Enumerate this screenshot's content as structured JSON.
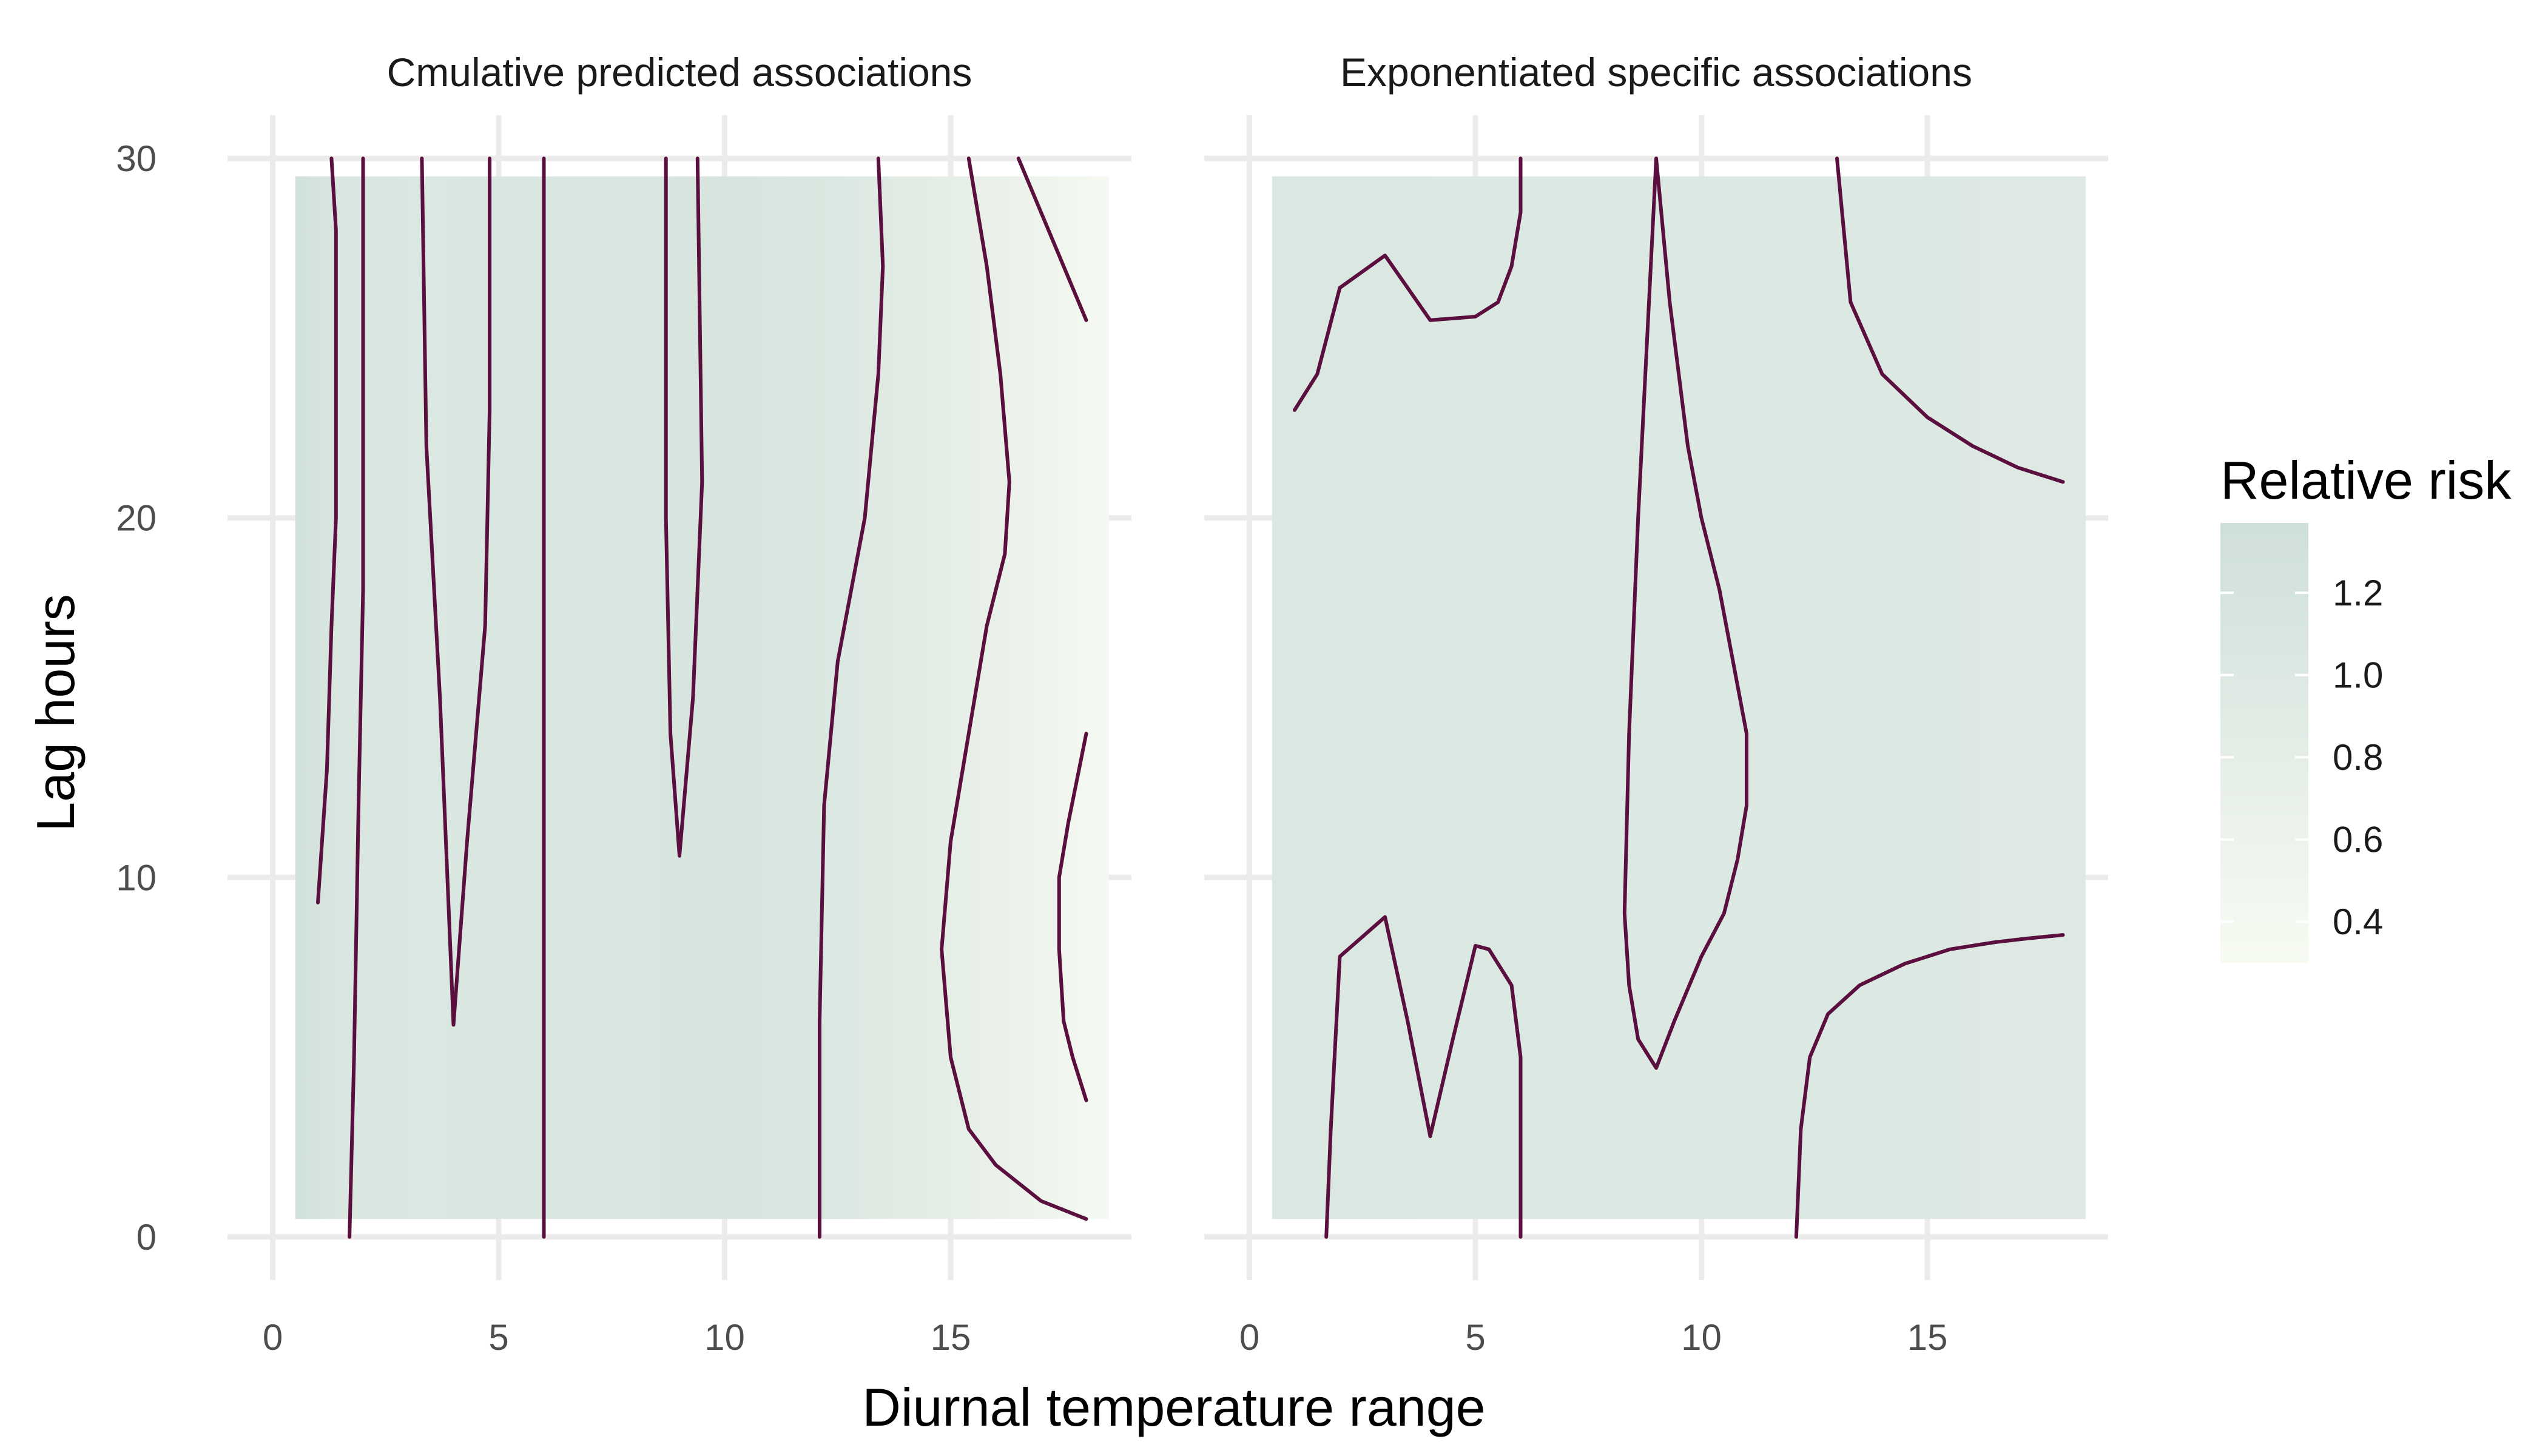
{
  "chart_data": {
    "type": "heatmap",
    "xlabel": "Diurnal temperature range",
    "ylabel": "Lag hours",
    "xlim": [
      -1,
      19
    ],
    "ylim": [
      -1.2,
      31.2
    ],
    "x_ticks": [
      0,
      5,
      10,
      15
    ],
    "y_ticks": [
      0,
      10,
      20,
      30
    ],
    "grid": true,
    "contour_color": "#5a0f3e",
    "legend": {
      "title": "Relative risk",
      "placement": "right",
      "labels": [
        "1.2",
        "1.0",
        "0.8",
        "0.6",
        "0.4"
      ],
      "values": [
        1.2,
        1.0,
        0.8,
        0.6,
        0.4
      ],
      "range": [
        0.3,
        1.37
      ],
      "colors": [
        "#f7fbf2",
        "#cfdfda"
      ]
    },
    "panels": [
      {
        "title": "Cmulative predicted associations",
        "x_range": [
          0.5,
          18.5
        ],
        "y_range": [
          0.5,
          29.5
        ],
        "column_values": [
          {
            "x": 0.5,
            "rr": 1.35
          },
          {
            "x": 1.5,
            "rr": 1.08
          },
          {
            "x": 3.5,
            "rr": 1.06
          },
          {
            "x": 6.5,
            "rr": 1.11
          },
          {
            "x": 10.5,
            "rr": 1.14
          },
          {
            "x": 12.5,
            "rr": 1.04
          },
          {
            "x": 15.5,
            "rr": 0.74
          },
          {
            "x": 18.5,
            "rr": 0.36
          }
        ],
        "contours": [
          [
            [
              1.0,
              9.3
            ],
            [
              1.2,
              13
            ],
            [
              1.3,
              17
            ],
            [
              1.4,
              20
            ],
            [
              1.4,
              24
            ],
            [
              1.4,
              28
            ],
            [
              1.3,
              30
            ]
          ],
          [
            [
              1.7,
              0
            ],
            [
              1.8,
              5
            ],
            [
              1.9,
              12
            ],
            [
              2.0,
              18
            ],
            [
              2.0,
              25
            ],
            [
              2.0,
              30
            ]
          ],
          [
            [
              3.3,
              30
            ],
            [
              3.4,
              22
            ],
            [
              3.7,
              15
            ],
            [
              4.0,
              5.9
            ],
            [
              4.3,
              11
            ],
            [
              4.7,
              17
            ],
            [
              4.8,
              23
            ],
            [
              4.8,
              30
            ]
          ],
          [
            [
              6.0,
              0
            ],
            [
              6.0,
              10
            ],
            [
              6.0,
              20
            ],
            [
              6.0,
              30
            ]
          ],
          [
            [
              8.7,
              30
            ],
            [
              8.7,
              20
            ],
            [
              8.8,
              14
            ],
            [
              9.0,
              10.6
            ],
            [
              9.3,
              15
            ],
            [
              9.5,
              21
            ],
            [
              9.4,
              30
            ]
          ],
          [
            [
              12.1,
              0
            ],
            [
              12.1,
              6
            ],
            [
              12.2,
              12
            ],
            [
              12.5,
              16
            ],
            [
              13.1,
              20
            ],
            [
              13.4,
              24
            ],
            [
              13.5,
              27
            ],
            [
              13.4,
              30
            ]
          ],
          [
            [
              18.0,
              0.5
            ],
            [
              17.0,
              1
            ],
            [
              16.0,
              2
            ],
            [
              15.4,
              3
            ],
            [
              15.0,
              5
            ],
            [
              14.8,
              8
            ],
            [
              15.0,
              11
            ],
            [
              15.4,
              14
            ],
            [
              15.8,
              17
            ],
            [
              16.2,
              19
            ],
            [
              16.3,
              21
            ],
            [
              16.1,
              24
            ],
            [
              15.8,
              27
            ],
            [
              15.4,
              30
            ]
          ],
          [
            [
              18.0,
              3.8
            ],
            [
              17.7,
              5
            ],
            [
              17.5,
              6
            ],
            [
              17.4,
              8
            ],
            [
              17.4,
              10
            ],
            [
              17.6,
              11.5
            ],
            [
              18.0,
              14
            ]
          ],
          [
            [
              16.5,
              30
            ],
            [
              17.0,
              28.5
            ],
            [
              18.0,
              25.5
            ]
          ]
        ]
      },
      {
        "title": "Exponentiated specific associations",
        "x_range": [
          0.5,
          18.5
        ],
        "y_range": [
          0.5,
          29.5
        ],
        "column_values": [
          {
            "x": 0.5,
            "rr": 1.04
          },
          {
            "x": 9.5,
            "rr": 1.02
          },
          {
            "x": 18.5,
            "rr": 1.0
          }
        ],
        "contours": [
          [
            [
              1.0,
              23
            ],
            [
              1.5,
              24
            ],
            [
              2.0,
              26.4
            ],
            [
              3.0,
              27.3
            ],
            [
              4.0,
              25.5
            ],
            [
              5.0,
              25.6
            ],
            [
              5.5,
              26
            ],
            [
              5.8,
              27
            ],
            [
              6.0,
              28.5
            ],
            [
              6.0,
              30
            ]
          ],
          [
            [
              1.7,
              0
            ],
            [
              1.8,
              3
            ],
            [
              2.0,
              7.8
            ],
            [
              3.0,
              8.9
            ],
            [
              3.5,
              6
            ],
            [
              4.0,
              2.8
            ],
            [
              4.5,
              5.5
            ],
            [
              5.0,
              8.1
            ],
            [
              5.3,
              8.0
            ],
            [
              5.8,
              7.0
            ],
            [
              6.0,
              5
            ],
            [
              6.0,
              0
            ]
          ],
          [
            [
              9.0,
              30
            ],
            [
              8.8,
              25
            ],
            [
              8.6,
              20
            ],
            [
              8.4,
              14
            ],
            [
              8.3,
              9
            ],
            [
              8.4,
              7
            ],
            [
              8.6,
              5.5
            ],
            [
              9.0,
              4.7
            ],
            [
              9.4,
              6
            ],
            [
              10.0,
              7.8
            ],
            [
              10.5,
              9
            ],
            [
              10.8,
              10.5
            ],
            [
              11.0,
              12
            ],
            [
              11.0,
              14
            ],
            [
              10.7,
              16
            ],
            [
              10.4,
              18
            ],
            [
              10.0,
              20
            ],
            [
              9.7,
              22
            ],
            [
              9.3,
              26
            ],
            [
              9.0,
              30
            ]
          ],
          [
            [
              13.0,
              30
            ],
            [
              13.3,
              26
            ],
            [
              14.0,
              24
            ],
            [
              15.0,
              22.8
            ],
            [
              16.0,
              22
            ],
            [
              17.0,
              21.4
            ],
            [
              18.0,
              21.0
            ]
          ],
          [
            [
              12.1,
              0
            ],
            [
              12.2,
              3
            ],
            [
              12.4,
              5
            ],
            [
              12.8,
              6.2
            ],
            [
              13.5,
              7
            ],
            [
              14.5,
              7.6
            ],
            [
              15.5,
              8.0
            ],
            [
              16.5,
              8.2
            ],
            [
              17.2,
              8.3
            ],
            [
              18.0,
              8.4
            ]
          ]
        ]
      }
    ]
  }
}
